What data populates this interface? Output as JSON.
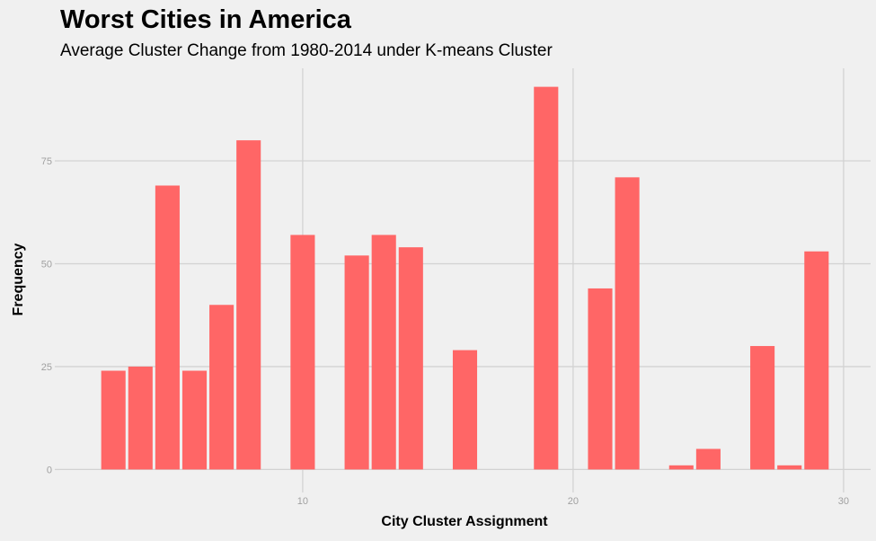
{
  "chart_data": {
    "type": "bar",
    "title": "Worst Cities in America",
    "subtitle": "Average Cluster Change from 1980-2014 under K-means Cluster",
    "xlabel": "City Cluster Assignment",
    "ylabel": "Frequency",
    "x": [
      3,
      4,
      5,
      6,
      7,
      8,
      10,
      12,
      13,
      14,
      16,
      19,
      21,
      22,
      24,
      25,
      27,
      28,
      29
    ],
    "values": [
      24,
      25,
      69,
      24,
      40,
      80,
      57,
      52,
      57,
      54,
      29,
      93,
      44,
      71,
      1,
      5,
      30,
      1,
      53
    ],
    "xlim": [
      1.0,
      31.0
    ],
    "ylim": [
      -4.5,
      97.5
    ],
    "x_ticks": [
      10,
      20,
      30
    ],
    "y_ticks": [
      0,
      25,
      50,
      75
    ],
    "x_tick_labels": [
      "10",
      "20",
      "30"
    ],
    "y_tick_labels": [
      "0",
      "25",
      "50",
      "75"
    ],
    "grid": true,
    "bar_color": "#ff6666",
    "background_color": "#f0f0f0",
    "grid_color": "#d2d2d2"
  }
}
